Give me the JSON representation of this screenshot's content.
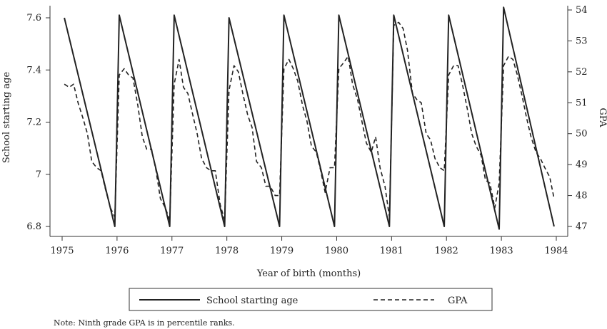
{
  "chart_data": {
    "type": "line",
    "xlabel": "Year of birth (months)",
    "ylabel_left": "School starting age",
    "ylabel_right": "GPA",
    "x_range": [
      1975,
      1984
    ],
    "x_ticks": [
      "1975",
      "1976",
      "1977",
      "1978",
      "1979",
      "1980",
      "1981",
      "1982",
      "1983",
      "1984"
    ],
    "y_left_range": [
      6.8,
      7.6
    ],
    "y_left_ticks": [
      "6.8",
      "7",
      "7.2",
      "7.4",
      "7.6"
    ],
    "y_right_range": [
      47,
      54
    ],
    "y_right_ticks": [
      "47",
      "48",
      "49",
      "50",
      "51",
      "52",
      "53",
      "54"
    ],
    "grid": false,
    "legend_placement": "bottom",
    "series": [
      {
        "name": "School starting age",
        "axis": "left",
        "style": "solid",
        "points": [
          [
            1975.04,
            7.6
          ],
          [
            1975.96,
            6.8
          ],
          [
            1976.04,
            7.61
          ],
          [
            1976.96,
            6.8
          ],
          [
            1977.04,
            7.61
          ],
          [
            1977.96,
            6.8
          ],
          [
            1978.04,
            7.6
          ],
          [
            1978.96,
            6.8
          ],
          [
            1979.04,
            7.61
          ],
          [
            1979.96,
            6.8
          ],
          [
            1980.04,
            7.61
          ],
          [
            1980.96,
            6.8
          ],
          [
            1981.04,
            7.61
          ],
          [
            1981.96,
            6.8
          ],
          [
            1982.04,
            7.61
          ],
          [
            1982.96,
            6.79
          ],
          [
            1983.04,
            7.64
          ],
          [
            1983.96,
            6.8
          ]
        ]
      },
      {
        "name": "GPA",
        "axis": "right",
        "style": "dashed",
        "points": [
          [
            1975.04,
            51.6
          ],
          [
            1975.13,
            51.5
          ],
          [
            1975.21,
            51.6
          ],
          [
            1975.29,
            51.0
          ],
          [
            1975.38,
            50.5
          ],
          [
            1975.46,
            50.0
          ],
          [
            1975.54,
            49.1
          ],
          [
            1975.63,
            48.9
          ],
          [
            1975.71,
            48.8
          ],
          [
            1975.79,
            48.2
          ],
          [
            1975.88,
            47.6
          ],
          [
            1975.96,
            47.3
          ],
          [
            1976.04,
            51.9
          ],
          [
            1976.13,
            52.1
          ],
          [
            1976.21,
            51.9
          ],
          [
            1976.29,
            51.8
          ],
          [
            1976.38,
            50.9
          ],
          [
            1976.46,
            49.9
          ],
          [
            1976.54,
            49.5
          ],
          [
            1976.63,
            49.5
          ],
          [
            1976.71,
            48.8
          ],
          [
            1976.79,
            47.9
          ],
          [
            1976.88,
            47.6
          ],
          [
            1976.96,
            47.2
          ],
          [
            1977.04,
            51.6
          ],
          [
            1977.13,
            52.4
          ],
          [
            1977.21,
            51.5
          ],
          [
            1977.29,
            51.3
          ],
          [
            1977.38,
            50.6
          ],
          [
            1977.46,
            50.0
          ],
          [
            1977.54,
            49.2
          ],
          [
            1977.63,
            48.9
          ],
          [
            1977.71,
            48.8
          ],
          [
            1977.79,
            48.8
          ],
          [
            1977.88,
            47.7
          ],
          [
            1977.96,
            47.2
          ],
          [
            1978.04,
            51.4
          ],
          [
            1978.13,
            52.2
          ],
          [
            1978.21,
            52.0
          ],
          [
            1978.29,
            51.3
          ],
          [
            1978.38,
            50.6
          ],
          [
            1978.46,
            50.2
          ],
          [
            1978.54,
            49.1
          ],
          [
            1978.63,
            48.9
          ],
          [
            1978.71,
            48.3
          ],
          [
            1978.79,
            48.3
          ],
          [
            1978.88,
            48.0
          ],
          [
            1978.96,
            48.0
          ],
          [
            1979.04,
            52.1
          ],
          [
            1979.13,
            52.4
          ],
          [
            1979.21,
            52.1
          ],
          [
            1979.29,
            51.7
          ],
          [
            1979.38,
            50.9
          ],
          [
            1979.46,
            50.4
          ],
          [
            1979.54,
            49.6
          ],
          [
            1979.63,
            49.4
          ],
          [
            1979.71,
            48.8
          ],
          [
            1979.79,
            48.1
          ],
          [
            1979.88,
            48.9
          ],
          [
            1979.96,
            48.9
          ],
          [
            1980.04,
            52.1
          ],
          [
            1980.13,
            52.3
          ],
          [
            1980.21,
            52.5
          ],
          [
            1980.29,
            51.6
          ],
          [
            1980.38,
            51.1
          ],
          [
            1980.46,
            50.4
          ],
          [
            1980.54,
            49.7
          ],
          [
            1980.63,
            49.4
          ],
          [
            1980.71,
            49.9
          ],
          [
            1980.79,
            48.9
          ],
          [
            1980.88,
            48.3
          ],
          [
            1980.96,
            47.3
          ],
          [
            1981.04,
            53.5
          ],
          [
            1981.13,
            53.6
          ],
          [
            1981.21,
            53.4
          ],
          [
            1981.29,
            52.7
          ],
          [
            1981.38,
            51.3
          ],
          [
            1981.46,
            51.1
          ],
          [
            1981.54,
            51.0
          ],
          [
            1981.63,
            50.0
          ],
          [
            1981.71,
            49.8
          ],
          [
            1981.79,
            49.2
          ],
          [
            1981.88,
            48.9
          ],
          [
            1981.96,
            48.8
          ],
          [
            1982.04,
            51.9
          ],
          [
            1982.13,
            52.2
          ],
          [
            1982.21,
            52.2
          ],
          [
            1982.29,
            51.6
          ],
          [
            1982.38,
            50.8
          ],
          [
            1982.46,
            50.0
          ],
          [
            1982.54,
            49.6
          ],
          [
            1982.63,
            49.3
          ],
          [
            1982.71,
            48.5
          ],
          [
            1982.79,
            48.4
          ],
          [
            1982.88,
            47.6
          ],
          [
            1982.96,
            48.4
          ],
          [
            1983.04,
            52.2
          ],
          [
            1983.13,
            52.5
          ],
          [
            1983.21,
            52.4
          ],
          [
            1983.29,
            51.9
          ],
          [
            1983.38,
            51.2
          ],
          [
            1983.46,
            50.5
          ],
          [
            1983.54,
            49.9
          ],
          [
            1983.63,
            49.4
          ],
          [
            1983.71,
            49.2
          ],
          [
            1983.79,
            48.9
          ],
          [
            1983.88,
            48.6
          ],
          [
            1983.96,
            47.9
          ]
        ]
      }
    ]
  },
  "legend": [
    {
      "label": "School starting age",
      "style": "solid"
    },
    {
      "label": "GPA",
      "style": "dashed"
    }
  ],
  "note": "Note: Ninth grade GPA is in percentile ranks."
}
